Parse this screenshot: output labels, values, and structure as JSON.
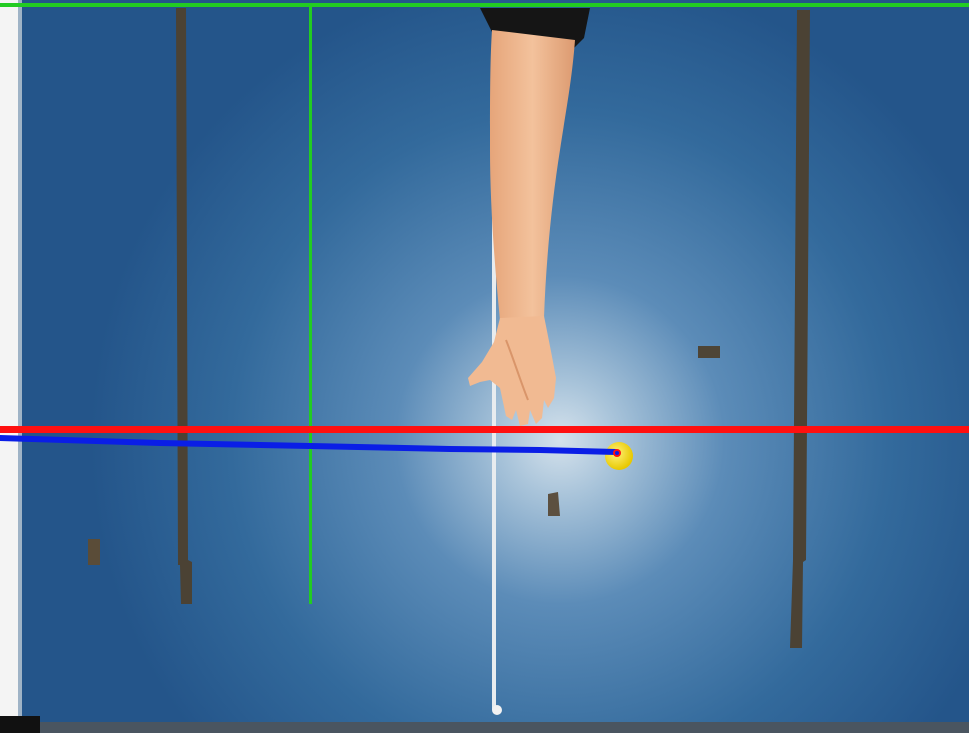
{
  "scene": {
    "description_name": "robot-arm-tracking-camera-view",
    "colors": {
      "surface_dark": "#24558a",
      "surface_mid": "#3f75a6",
      "surface_light": "#c9d9e6",
      "tape": "#4b4234",
      "skin": "#f0b990",
      "sleeve": "#151515",
      "target_ball": "#f5dc12",
      "overlay_green": "#22cc22",
      "overlay_red": "#ff1010",
      "overlay_blue": "#0a1ee6",
      "guide_rod": "#e8ecef",
      "left_edge": "#f4f4f4"
    }
  }
}
